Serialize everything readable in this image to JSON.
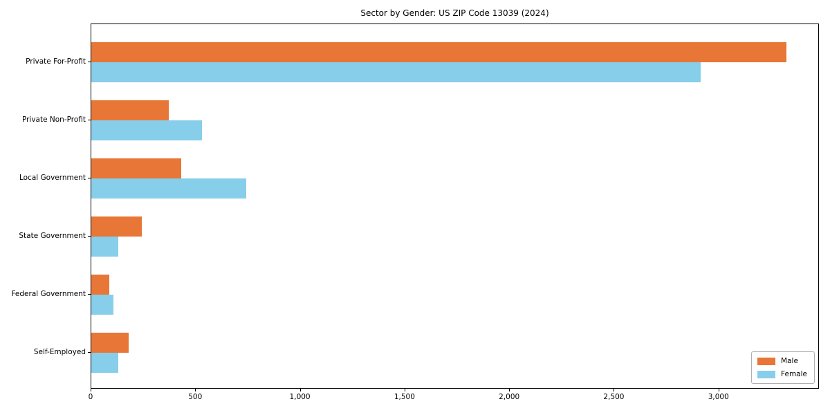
{
  "title": "Sector by Gender: US ZIP Code 13039 (2024)",
  "chart_data": {
    "type": "bar",
    "orientation": "horizontal",
    "title": "Sector by Gender: US ZIP Code 13039 (2024)",
    "categories": [
      "Private For-Profit",
      "Private Non-Profit",
      "Local Government",
      "State Government",
      "Federal Government",
      "Self-Employed"
    ],
    "series": [
      {
        "name": "Male",
        "color": "#e87636",
        "values": [
          3320,
          370,
          430,
          240,
          85,
          180
        ]
      },
      {
        "name": "Female",
        "color": "#87ceeb",
        "values": [
          2910,
          530,
          740,
          130,
          105,
          130
        ]
      }
    ],
    "xlabel": "",
    "ylabel": "",
    "xlim": [
      0,
      3480
    ],
    "xticks": [
      0,
      500,
      1000,
      1500,
      2000,
      2500,
      3000
    ],
    "xtick_labels": [
      "0",
      "500",
      "1,000",
      "1,500",
      "2,000",
      "2,500",
      "3,000"
    ],
    "grid": false,
    "legend": {
      "position": "lower right",
      "entries": [
        "Male",
        "Female"
      ]
    }
  }
}
